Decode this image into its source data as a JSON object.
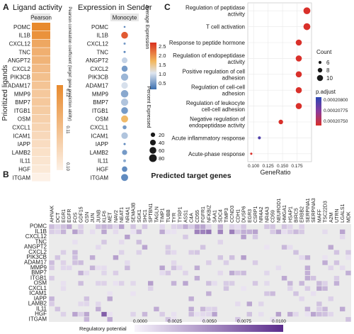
{
  "panel_labels": {
    "a": "A",
    "b": "B",
    "c": "C"
  },
  "panel_a": {
    "title_left": "Ligand activity",
    "title_right": "Expression in Sender",
    "strip_pearson": "Pearson",
    "strip_monocyte": "Monocyte",
    "ylabel": "Prioritized ligands",
    "pearson_colorbar_title": "Pearson correlation coefficient (target gene prediction ability)",
    "pearson_ticks": [
      "0.10",
      "0.11",
      "0.12"
    ],
    "avg_expr_title": "Average Expression",
    "avg_expr_ticks": [
      "2.5",
      "2.0",
      "1.5",
      "1.0",
      "0.5"
    ],
    "pct_title": "Percent Expressed",
    "pct_ticks": [
      "20",
      "40",
      "60",
      "80"
    ]
  },
  "panel_b": {
    "title": "Predicted target genes",
    "legend_title": "Regulatory potential",
    "legend_ticks": [
      "0.0000",
      "0.0025",
      "0.0050",
      "0.0075",
      "0.0100"
    ]
  },
  "panel_c": {
    "xlabel": "GeneRatio",
    "x_ticks": [
      "0.100",
      "0.125",
      "0.150",
      "0.175"
    ],
    "count_title": "Count",
    "count_ticks": [
      "6",
      "8",
      "10"
    ],
    "padj_title": "p.adjust",
    "padj_ticks": [
      "0.00020800",
      "0.00020775",
      "0.00020750"
    ]
  },
  "chart_data": [
    {
      "type": "heatmap",
      "panel": "A-left",
      "rows": [
        "POMC",
        "IL1B",
        "CXCL12",
        "TNC",
        "ANGPT2",
        "CXCL2",
        "PIK3CB",
        "ADAM17",
        "MMP9",
        "BMP7",
        "ITGB1",
        "OSM",
        "CXCL1",
        "ICAM1",
        "IAPP",
        "LAMB2",
        "IL11",
        "HGF",
        "ITGAM"
      ],
      "columns": [
        "Pearson"
      ],
      "values": [
        0.125,
        0.123,
        0.118,
        0.116,
        0.115,
        0.113,
        0.112,
        0.111,
        0.11,
        0.11,
        0.109,
        0.108,
        0.107,
        0.106,
        0.105,
        0.104,
        0.103,
        0.102,
        0.1
      ]
    },
    {
      "type": "scatter",
      "panel": "A-right",
      "rows": [
        "POMC",
        "IL1B",
        "CXCL12",
        "TNC",
        "ANGPT2",
        "CXCL2",
        "PIK3CB",
        "ADAM17",
        "MMP9",
        "BMP7",
        "ITGB1",
        "OSM",
        "CXCL1",
        "ICAM1",
        "IAPP",
        "LAMB2",
        "IL11",
        "HGF",
        "ITGAM"
      ],
      "column": "Monocyte",
      "avg_expression": [
        0.5,
        2.4,
        0.6,
        0.5,
        1.0,
        0.6,
        0.8,
        1.1,
        0.7,
        0.9,
        0.6,
        1.7,
        0.6,
        0.9,
        0.5,
        0.6,
        0.7,
        0.5,
        0.5
      ],
      "pct_expressed": [
        1,
        60,
        2,
        2,
        40,
        45,
        70,
        55,
        75,
        70,
        60,
        65,
        15,
        55,
        2,
        30,
        5,
        35,
        65
      ]
    },
    {
      "type": "heatmap",
      "panel": "B",
      "rows": [
        "POMC",
        "IL1B",
        "CXCL12",
        "TNC",
        "ANGPT2",
        "CXCL2",
        "PIK3CB",
        "ADAM17",
        "MMP9",
        "BMP7",
        "ITGB1",
        "OSM",
        "CXCL1",
        "ICAM1",
        "IAPP",
        "LAMB2",
        "IL11",
        "HGF",
        "ITGAM"
      ],
      "columns": [
        "AHNAK",
        "DCT",
        "EGR1",
        "EGFR",
        "FOS",
        "GDF15",
        "GSN",
        "JUN",
        "JUNB",
        "KLF6",
        "MET",
        "NAV2",
        "NEAT1",
        "NR4A1",
        "SEMA3B",
        "SGK1",
        "SHC1",
        "SPTBN1",
        "TAGLN",
        "TIMP1",
        "TUBB",
        "TYR",
        "TYRP1",
        "ASS1",
        "C4A",
        "CD55",
        "FGFR1",
        "NFKBIZ",
        "SAA1",
        "SDC4",
        "TIMP3",
        "CCND3",
        "CDH1",
        "DUSP6",
        "EGR3",
        "CSRP1",
        "NR4A2",
        "NR4A3",
        "CD59",
        "NEUROD1",
        "HMGA1",
        "HSAP1",
        "BIRC5",
        "ERBB2",
        "SERPINA1",
        "SERPINA3",
        "MAFF",
        "TSC22D3",
        "A2M",
        "UTRN",
        "LGALS1",
        "MDK"
      ],
      "values": "Regulatory potential 0–0.0100, mostly 0 with sparse light-purple entries; strongest in POMC, IL1B, OSM, HGF rows."
    },
    {
      "type": "scatter",
      "panel": "C",
      "categories": [
        "Regulation of peptidase activity",
        "T cell activation",
        "Response to peptide hormone",
        "Regulation of endopeptidase activity",
        "Positive regulation of cell adhesion",
        "Regulation of cell-cell adhesion",
        "Regulation of leukocyte cell-cell adhesion",
        "Negative regulation of endopeptidase activity",
        "Acute inflammatory response",
        "Acute-phase response"
      ],
      "x": [
        0.192,
        0.192,
        0.178,
        0.178,
        0.178,
        0.178,
        0.178,
        0.147,
        0.11,
        0.096
      ],
      "count": [
        11,
        11,
        10,
        10,
        10,
        10,
        10,
        8,
        6,
        5
      ],
      "p_adjust": [
        0.0002075,
        0.0002075,
        0.0002075,
        0.0002075,
        0.0002075,
        0.0002075,
        0.0002075,
        0.0002075,
        0.0002079,
        0.0002075
      ],
      "xlabel": "GeneRatio",
      "xlim": [
        0.09,
        0.2
      ]
    }
  ]
}
